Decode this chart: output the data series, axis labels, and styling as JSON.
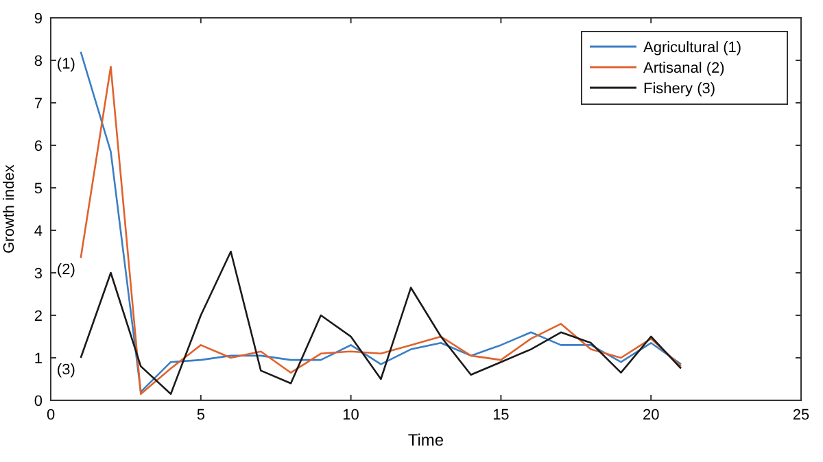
{
  "chart_data": {
    "type": "line",
    "xlabel": "Time",
    "ylabel": "Growth index",
    "x": [
      1,
      2,
      3,
      4,
      5,
      6,
      7,
      8,
      9,
      10,
      11,
      12,
      13,
      14,
      15,
      16,
      17,
      18,
      19,
      20,
      21
    ],
    "series": [
      {
        "name": "Agricultural (1)",
        "color": "#3a7ec6",
        "values": [
          8.2,
          5.85,
          0.2,
          0.9,
          0.95,
          1.05,
          1.05,
          0.95,
          0.95,
          1.3,
          0.85,
          1.2,
          1.35,
          1.05,
          1.3,
          1.6,
          1.3,
          1.3,
          0.9,
          1.35,
          0.85
        ]
      },
      {
        "name": "Artisanal (2)",
        "color": "#e0622c",
        "values": [
          3.35,
          7.85,
          0.15,
          0.75,
          1.3,
          1.0,
          1.15,
          0.65,
          1.1,
          1.15,
          1.1,
          1.3,
          1.5,
          1.05,
          0.95,
          1.45,
          1.8,
          1.2,
          1.0,
          1.45,
          0.8
        ]
      },
      {
        "name": "Fishery (3)",
        "color": "#1a1a1a",
        "values": [
          1.0,
          3.0,
          0.8,
          0.15,
          2.0,
          3.5,
          0.7,
          0.4,
          2.0,
          1.5,
          0.5,
          2.65,
          1.5,
          0.6,
          0.9,
          1.2,
          1.6,
          1.35,
          0.65,
          1.5,
          0.75
        ]
      }
    ],
    "annotations": [
      "(1)",
      "(2)",
      "(3)"
    ],
    "xlim": [
      0,
      25
    ],
    "xticks": [
      0,
      5,
      10,
      15,
      20,
      25
    ],
    "ylim": [
      0,
      9
    ],
    "yticks": [
      0,
      1,
      2,
      3,
      4,
      5,
      6,
      7,
      8,
      9
    ],
    "grid": false,
    "legend": "top right",
    "marker": "none",
    "line_style": "solid"
  }
}
